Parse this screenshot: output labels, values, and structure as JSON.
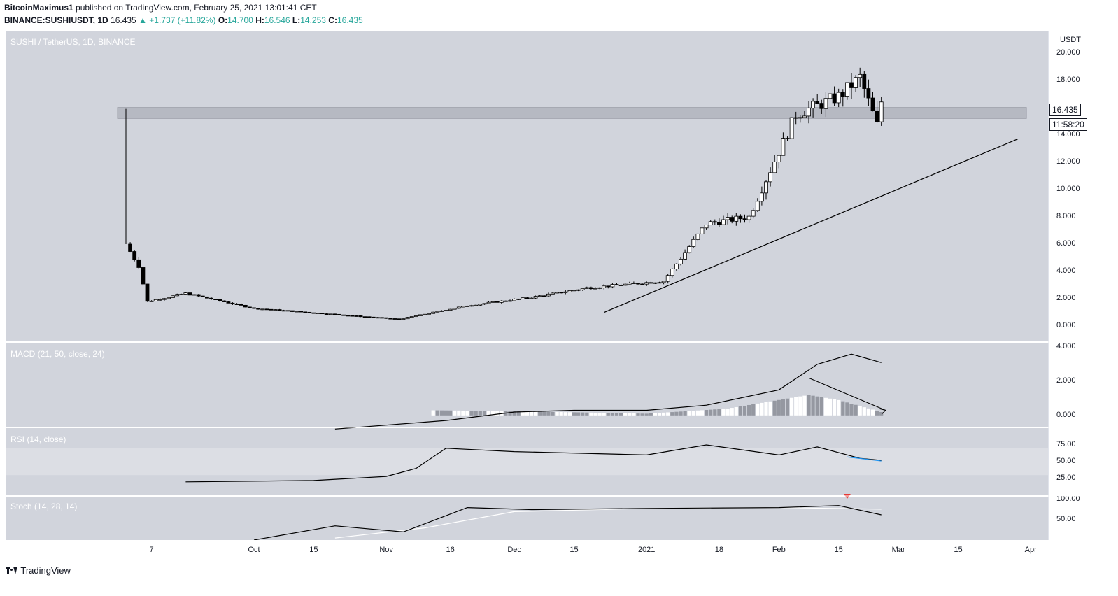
{
  "header": {
    "author": "BitcoinMaximus1",
    "published": " published on TradingView.com, February 25, 2021 13:01:41 CET",
    "symbol": "BINANCE:SUSHIUSDT, 1D",
    "last": "16.435",
    "change": "▲ +1.737 (+11.82%)",
    "o_label": "O:",
    "o": "14.700",
    "h_label": "H:",
    "h": "16.546",
    "l_label": "L:",
    "l": "14.253",
    "c_label": "C:",
    "c": "16.435"
  },
  "main": {
    "label": "SUSHI / TetherUS, 1D, BINANCE",
    "currency": "USDT",
    "last_price": "16.435",
    "countdown": "11:58:20"
  },
  "macd": {
    "label": "MACD (21, 50, close, 24)"
  },
  "rsi": {
    "label": "RSI (14, close)"
  },
  "stoch": {
    "label": "Stoch (14, 28, 14)"
  },
  "footer": {
    "brand": "TradingView"
  },
  "colors": {
    "pane_bg": "#d1d4dc",
    "line": "#000000",
    "signal": "#ffffff",
    "resistance_fill": "#b2b5be",
    "rsi_signal": "#2196f3",
    "marker": "#e53935"
  },
  "chart_data": [
    {
      "type": "candlestick",
      "title": "SUSHI / TetherUS, 1D, BINANCE",
      "ylabel": "USDT",
      "ylim": [
        -0.5,
        21
      ],
      "y_ticks": [
        "0.000",
        "2.000",
        "4.000",
        "6.000",
        "8.000",
        "10.000",
        "12.000",
        "14.000",
        "16.000",
        "18.000",
        "20.000"
      ],
      "x_tick_labels": [
        "7",
        "Oct",
        "15",
        "Nov",
        "16",
        "Dec",
        "15",
        "2021",
        "18",
        "Feb",
        "15",
        "Mar",
        "15",
        "Apr"
      ],
      "x_tick_dates": [
        "2020-09-07",
        "2020-10-01",
        "2020-10-15",
        "2020-11-01",
        "2020-11-16",
        "2020-12-01",
        "2020-12-15",
        "2021-01-01",
        "2021-01-18",
        "2021-02-01",
        "2021-02-15",
        "2021-03-01",
        "2021-03-15",
        "2021-04-01"
      ],
      "resistance_zone": [
        15.2,
        16.0
      ],
      "ascending_trendline": [
        {
          "date": "2020-12-22",
          "price": 1.0
        },
        {
          "date": "2021-03-29",
          "price": 13.7
        }
      ],
      "key_closes": [
        {
          "date": "2020-09-01",
          "close": 6.0
        },
        {
          "date": "2020-09-04",
          "close": 4.4
        },
        {
          "date": "2020-09-06",
          "close": 1.8
        },
        {
          "date": "2020-09-15",
          "close": 2.4
        },
        {
          "date": "2020-10-01",
          "close": 1.3
        },
        {
          "date": "2020-11-04",
          "close": 0.5
        },
        {
          "date": "2020-11-20",
          "close": 1.5
        },
        {
          "date": "2020-12-05",
          "close": 2.1
        },
        {
          "date": "2020-12-18",
          "close": 2.8
        },
        {
          "date": "2021-01-05",
          "close": 3.3
        },
        {
          "date": "2021-01-15",
          "close": 7.5
        },
        {
          "date": "2021-01-25",
          "close": 8.0
        },
        {
          "date": "2021-02-05",
          "close": 15.5
        },
        {
          "date": "2021-02-15",
          "close": 16.8
        },
        {
          "date": "2021-02-20",
          "close": 18.2
        },
        {
          "date": "2021-02-24",
          "close": 14.7
        },
        {
          "date": "2021-02-25",
          "close": 16.435
        }
      ]
    },
    {
      "type": "line",
      "title": "MACD (21, 50, close, 24)",
      "ylim": [
        -0.5,
        4.1
      ],
      "y_ticks": [
        "0.000",
        "2.000",
        "4.000"
      ],
      "series": [
        {
          "name": "MACD",
          "x": [
            "2020-10-20",
            "2020-11-15",
            "2020-12-01",
            "2020-12-15",
            "2021-01-01",
            "2021-01-15",
            "2021-02-01",
            "2021-02-10",
            "2021-02-18",
            "2021-02-25"
          ],
          "values": [
            -0.8,
            -0.3,
            0.2,
            0.3,
            0.3,
            0.6,
            1.5,
            3.0,
            3.6,
            3.1
          ]
        },
        {
          "name": "Histogram",
          "x": [
            "2020-11-12",
            "2020-12-01",
            "2021-01-01",
            "2021-01-20",
            "2021-02-08",
            "2021-02-15",
            "2021-02-25"
          ],
          "values": [
            0.3,
            0.25,
            0.1,
            0.4,
            1.2,
            0.9,
            0.2
          ]
        }
      ]
    },
    {
      "type": "line",
      "title": "RSI (14, close)",
      "ylim": [
        0,
        100
      ],
      "y_ticks": [
        "25.00",
        "50.00",
        "75.00"
      ],
      "series": [
        {
          "name": "RSI",
          "x": [
            "2020-09-15",
            "2020-10-15",
            "2020-11-01",
            "2020-11-08",
            "2020-11-15",
            "2020-12-01",
            "2021-01-01",
            "2021-01-15",
            "2021-02-01",
            "2021-02-10",
            "2021-02-20",
            "2021-02-25"
          ],
          "values": [
            20,
            22,
            28,
            40,
            70,
            65,
            60,
            75,
            60,
            72,
            55,
            52
          ]
        }
      ]
    },
    {
      "type": "line",
      "title": "Stoch (14, 28, 14)",
      "ylim": [
        0,
        100
      ],
      "y_ticks": [
        "50.00",
        "100.00"
      ],
      "series": [
        {
          "name": "%K",
          "x": [
            "2020-10-01",
            "2020-10-20",
            "2020-11-05",
            "2020-11-20",
            "2020-12-05",
            "2021-01-01",
            "2021-02-01",
            "2021-02-15",
            "2021-02-25"
          ],
          "values": [
            0,
            35,
            20,
            80,
            75,
            78,
            80,
            85,
            62
          ]
        },
        {
          "name": "%D",
          "x": [
            "2020-10-20",
            "2020-11-10",
            "2020-12-01",
            "2021-01-01",
            "2021-02-01",
            "2021-02-25"
          ],
          "values": [
            5,
            30,
            70,
            78,
            80,
            76
          ]
        }
      ]
    }
  ]
}
